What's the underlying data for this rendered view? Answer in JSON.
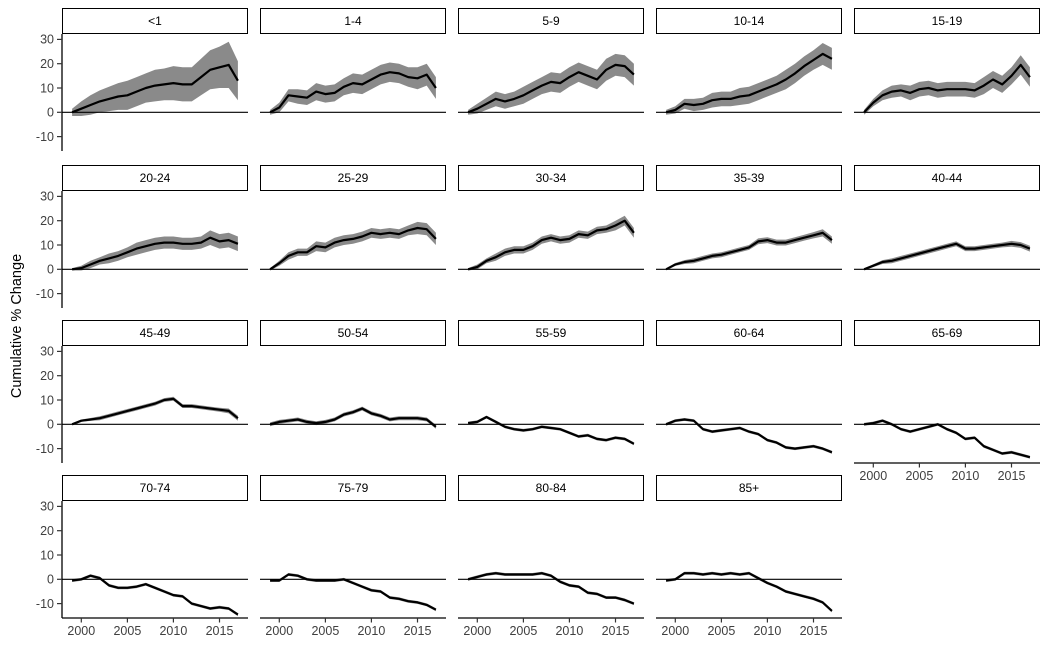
{
  "figure": {
    "title": "",
    "background_color": "#ffffff",
    "colors": {
      "line": "#000000",
      "ribbon": "#8a8a8a",
      "axis": "#000000",
      "tick": "#333333",
      "tick_label": "#404040",
      "zero_line": "#000000",
      "strip_border": "#000000",
      "strip_bg": "#ffffff",
      "strip_text": "#000000"
    }
  },
  "chart_data": {
    "type": "line",
    "title": "",
    "xlabel": "",
    "ylabel": "Cumulative % Change",
    "legend": "none",
    "grid": "off",
    "facet_layout": {
      "rows": 4,
      "cols": 5,
      "facets_total": 19
    },
    "xlim": [
      1998,
      2018
    ],
    "ylim": [
      -16,
      32
    ],
    "x_ticks": [
      2000,
      2005,
      2010,
      2015
    ],
    "y_ticks": [
      30,
      20,
      10,
      0,
      -10
    ],
    "x": [
      1999,
      2000,
      2001,
      2002,
      2003,
      2004,
      2005,
      2006,
      2007,
      2008,
      2009,
      2010,
      2011,
      2012,
      2013,
      2014,
      2015,
      2016,
      2017
    ],
    "facets": [
      {
        "label": "<1",
        "y": [
          0,
          1.5,
          3,
          4.5,
          5.5,
          6.5,
          7,
          8.5,
          10,
          11,
          11.5,
          12,
          11.5,
          11.5,
          14.5,
          17.5,
          18.5,
          19.5,
          13
        ],
        "band": [
          1.5,
          3,
          4,
          4.5,
          5,
          5.5,
          6,
          6,
          6,
          6.5,
          6.5,
          7,
          7,
          7,
          7.5,
          8,
          8.5,
          9.5,
          8
        ]
      },
      {
        "label": "1-4",
        "y": [
          0,
          2,
          7,
          6.5,
          6,
          8.5,
          7.5,
          8,
          10.5,
          12,
          11.5,
          13.5,
          15.5,
          16.5,
          16,
          14.5,
          14,
          15.5,
          10
        ],
        "band": [
          1,
          2,
          2.5,
          3,
          3,
          3.5,
          3.5,
          3.5,
          3.5,
          4,
          4,
          4,
          4,
          4,
          4,
          4,
          4.5,
          4.5,
          4.5
        ]
      },
      {
        "label": "5-9",
        "y": [
          0,
          1.5,
          3.5,
          5.5,
          4.5,
          5.5,
          7,
          9,
          11,
          12.5,
          12,
          14.5,
          16.5,
          15,
          13.5,
          17.5,
          19.5,
          19,
          15.5
        ],
        "band": [
          1,
          2,
          2.5,
          3,
          3,
          3,
          3.5,
          3.5,
          3.5,
          4,
          4,
          4,
          4,
          4,
          4,
          4.5,
          4.5,
          4.5,
          4.5
        ]
      },
      {
        "label": "10-14",
        "y": [
          0,
          1,
          3.5,
          3,
          3.5,
          5,
          5.5,
          5.5,
          6.5,
          7,
          8.5,
          10,
          11.5,
          13.5,
          16,
          19,
          21.5,
          24,
          22
        ],
        "band": [
          1,
          1.5,
          2,
          2.5,
          2.5,
          3,
          3,
          3,
          3.5,
          3.5,
          3.5,
          3.5,
          3.5,
          4,
          4,
          4,
          4,
          4.5,
          4.5
        ]
      },
      {
        "label": "15-19",
        "y": [
          0,
          4,
          7,
          8.5,
          9,
          8,
          9.5,
          10,
          9,
          9.5,
          9.5,
          9.5,
          9,
          11,
          13.5,
          11.5,
          15,
          19.5,
          14.5
        ],
        "band": [
          1,
          1.5,
          2,
          2.5,
          2.5,
          3,
          3,
          3,
          3,
          3,
          3,
          3,
          3,
          3.5,
          3.5,
          3.5,
          3.5,
          4,
          4
        ]
      },
      {
        "label": "20-24",
        "y": [
          0,
          0.5,
          2,
          3.5,
          4.5,
          5.5,
          7,
          8.5,
          9.5,
          10.5,
          11,
          11,
          10.5,
          10.5,
          11,
          13,
          11.5,
          12,
          10.5
        ],
        "band": [
          0.5,
          1,
          1.5,
          1.5,
          2,
          2,
          2,
          2.5,
          2.5,
          2.5,
          2.5,
          2.5,
          2.5,
          2.5,
          2.5,
          3,
          3,
          3,
          3
        ]
      },
      {
        "label": "25-29",
        "y": [
          0,
          2.5,
          5.5,
          7,
          7,
          9.5,
          9,
          11,
          12,
          12.5,
          13.5,
          15,
          14.5,
          15,
          14.5,
          16,
          17,
          16.5,
          12.5
        ],
        "band": [
          0.5,
          1,
          1.5,
          1.5,
          1.5,
          2,
          2,
          2,
          2,
          2,
          2,
          2,
          2,
          2,
          2,
          2,
          2.5,
          2.5,
          2.5
        ]
      },
      {
        "label": "30-34",
        "y": [
          0,
          1,
          3.5,
          5,
          7,
          8,
          8,
          9.5,
          12,
          13,
          12,
          12.5,
          14.5,
          14,
          16,
          16.5,
          18,
          20,
          15
        ],
        "band": [
          0.5,
          1,
          1,
          1.5,
          1.5,
          1.5,
          1.5,
          1.5,
          1.5,
          1.5,
          1.5,
          1.5,
          1.5,
          1.5,
          1.5,
          1.5,
          2,
          2,
          2
        ]
      },
      {
        "label": "35-39",
        "y": [
          0,
          2,
          3,
          3.5,
          4.5,
          5.5,
          6,
          7,
          8,
          9,
          11.5,
          12,
          11,
          11,
          12,
          13,
          14,
          15,
          12
        ],
        "band": [
          0.4,
          0.6,
          0.8,
          1,
          1,
          1,
          1,
          1,
          1,
          1,
          1.2,
          1.2,
          1.2,
          1.2,
          1.2,
          1.2,
          1.3,
          1.5,
          1.5
        ]
      },
      {
        "label": "40-44",
        "y": [
          0,
          1.5,
          3,
          3.5,
          4.5,
          5.5,
          6.5,
          7.5,
          8.5,
          9.5,
          10.5,
          8.5,
          8.5,
          9,
          9.5,
          10,
          10.5,
          10,
          8.5
        ],
        "band": [
          0.4,
          0.6,
          0.8,
          1,
          1,
          1,
          1,
          1,
          1,
          1,
          1,
          1,
          1,
          1,
          1,
          1,
          1.2,
          1.2,
          1.2
        ]
      },
      {
        "label": "45-49",
        "y": [
          0,
          1.5,
          2,
          2.5,
          3.5,
          4.5,
          5.5,
          6.5,
          7.5,
          8.5,
          10,
          10.5,
          7.5,
          7.5,
          7,
          6.5,
          6,
          5.5,
          2.5
        ],
        "band": [
          0.3,
          0.5,
          0.6,
          0.8,
          0.8,
          0.8,
          0.8,
          0.8,
          0.8,
          0.8,
          0.8,
          0.8,
          0.8,
          0.8,
          0.8,
          0.8,
          0.8,
          1,
          1
        ]
      },
      {
        "label": "50-54",
        "y": [
          0,
          1,
          1.5,
          2,
          1,
          0.5,
          1,
          2,
          4,
          5,
          6.5,
          4.5,
          3.5,
          2,
          2.5,
          2.5,
          2.5,
          2,
          -1
        ],
        "band": 0.8
      },
      {
        "label": "55-59",
        "y": [
          0.5,
          1,
          3,
          1,
          -1,
          -2,
          -2.5,
          -2,
          -1,
          -1.5,
          -2,
          -3.5,
          -5,
          -4.5,
          -6,
          -6.5,
          -5.5,
          -6,
          -8
        ],
        "band": 0.6
      },
      {
        "label": "60-64",
        "y": [
          0,
          1.5,
          2,
          1.5,
          -2,
          -3,
          -2.5,
          -2,
          -1.5,
          -3,
          -4,
          -6.5,
          -7.5,
          -9.5,
          -10,
          -9.5,
          -9,
          -10,
          -11.5
        ],
        "band": 0.6
      },
      {
        "label": "65-69",
        "y": [
          0,
          0.5,
          1.5,
          0,
          -2,
          -3,
          -2,
          -1,
          0,
          -2,
          -3.5,
          -6,
          -5.5,
          -9,
          -10.5,
          -12,
          -11.5,
          -12.5,
          -13.5
        ],
        "band": 0.6
      },
      {
        "label": "70-74",
        "y": [
          -0.5,
          0,
          1.5,
          0.5,
          -2.5,
          -3.5,
          -3.5,
          -3,
          -2,
          -3.5,
          -5,
          -6.5,
          -7,
          -10,
          -11,
          -12,
          -11.5,
          -12,
          -14.5
        ],
        "band": 0.6
      },
      {
        "label": "75-79",
        "y": [
          -0.5,
          -0.5,
          2,
          1.5,
          0,
          -0.5,
          -0.5,
          -0.5,
          0,
          -1.5,
          -3,
          -4.5,
          -5,
          -7.5,
          -8,
          -9,
          -9.5,
          -10.5,
          -12.5
        ],
        "band": 0.6
      },
      {
        "label": "80-84",
        "y": [
          0,
          1,
          2,
          2.5,
          2,
          2,
          2,
          2,
          2.5,
          1.5,
          -1,
          -2.5,
          -3,
          -5.5,
          -6,
          -7.5,
          -7.5,
          -8.5,
          -10
        ],
        "band": 0.6
      },
      {
        "label": "85+",
        "y": [
          -0.5,
          0,
          2.5,
          2.5,
          2,
          2.5,
          2,
          2.5,
          2,
          2.5,
          0.5,
          -1.5,
          -3,
          -5,
          -6,
          -7,
          -8,
          -9.5,
          -13
        ],
        "band": 0.6
      }
    ]
  }
}
